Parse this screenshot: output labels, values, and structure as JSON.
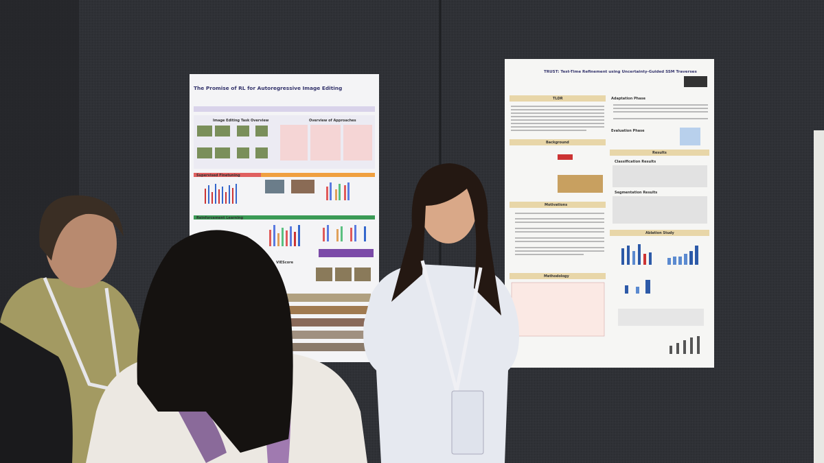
{
  "posters": [
    {
      "title": "The Promise of RL for Autoregressive Image Editing",
      "sections": [
        "Image Editing Task Overview",
        "Overview of Approaches",
        "Supervised Finetuning",
        "Reinforcement Learning",
        "VIEScore"
      ]
    },
    {
      "title": "TRUST: Test-Time Refinement using Uncertainty-Guided SSM Traverses",
      "sections": [
        "TLDR",
        "Background",
        "Motivations",
        "Methodology",
        "Adaptation Phase",
        "Evaluation Phase",
        "Results",
        "Classification Results",
        "Segmentation Results",
        "Ablation Study"
      ]
    }
  ]
}
